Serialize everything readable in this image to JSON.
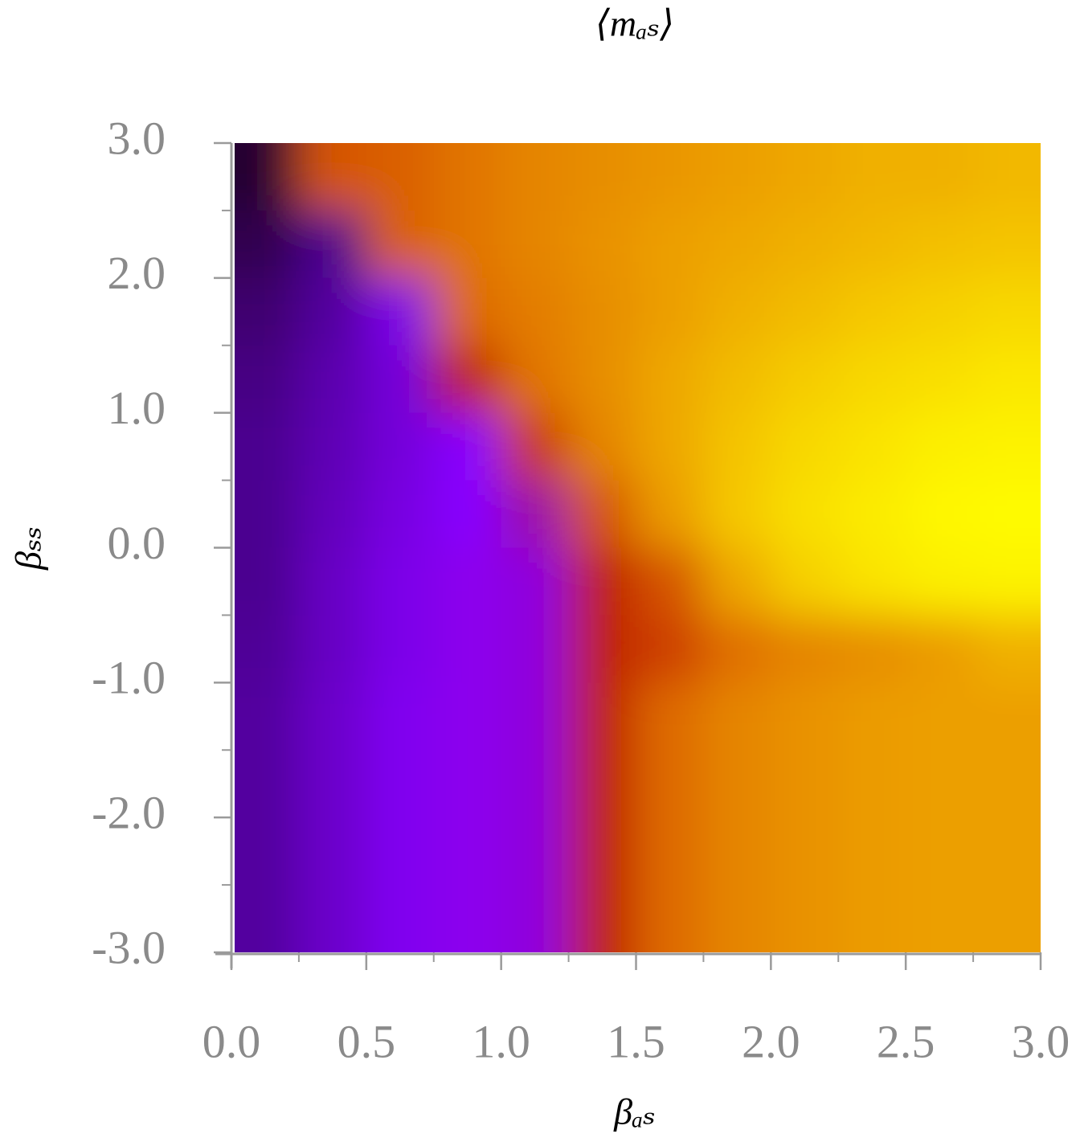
{
  "chart_data": {
    "type": "heatmap",
    "title": "⟨mₐₛ⟩",
    "x_label": "βₐₛ",
    "y_label": "βₛₛ",
    "x": [
      0.125,
      0.375,
      0.625,
      0.875,
      1.125,
      1.375,
      1.625,
      1.875,
      2.125,
      2.375,
      2.625,
      2.875
    ],
    "y": [
      2.75,
      2.25,
      1.75,
      1.25,
      0.75,
      0.25,
      -0.25,
      -0.75,
      -1.25,
      -1.75,
      -2.25,
      -2.75
    ],
    "z": [
      [
        0.05,
        0.6,
        0.62,
        0.66,
        0.7,
        0.72,
        0.74,
        0.76,
        0.78,
        0.8,
        0.8,
        0.82
      ],
      [
        0.1,
        0.2,
        0.62,
        0.66,
        0.7,
        0.73,
        0.76,
        0.78,
        0.8,
        0.82,
        0.84,
        0.85
      ],
      [
        0.15,
        0.22,
        0.32,
        0.64,
        0.68,
        0.72,
        0.76,
        0.8,
        0.83,
        0.86,
        0.88,
        0.9
      ],
      [
        0.18,
        0.24,
        0.3,
        0.5,
        0.66,
        0.72,
        0.78,
        0.83,
        0.87,
        0.9,
        0.92,
        0.94
      ],
      [
        0.2,
        0.25,
        0.3,
        0.35,
        0.55,
        0.7,
        0.78,
        0.85,
        0.9,
        0.93,
        0.96,
        0.97
      ],
      [
        0.2,
        0.26,
        0.31,
        0.35,
        0.4,
        0.6,
        0.75,
        0.86,
        0.92,
        0.95,
        0.98,
        0.99
      ],
      [
        0.2,
        0.27,
        0.32,
        0.36,
        0.37,
        0.5,
        0.6,
        0.78,
        0.88,
        0.93,
        0.96,
        0.97
      ],
      [
        0.21,
        0.27,
        0.32,
        0.36,
        0.37,
        0.5,
        0.56,
        0.65,
        0.7,
        0.72,
        0.75,
        0.8
      ],
      [
        0.22,
        0.28,
        0.33,
        0.36,
        0.37,
        0.5,
        0.64,
        0.7,
        0.73,
        0.75,
        0.76,
        0.76
      ],
      [
        0.22,
        0.28,
        0.33,
        0.36,
        0.37,
        0.5,
        0.64,
        0.7,
        0.73,
        0.75,
        0.76,
        0.76
      ],
      [
        0.22,
        0.28,
        0.33,
        0.36,
        0.37,
        0.5,
        0.64,
        0.7,
        0.73,
        0.75,
        0.76,
        0.76
      ],
      [
        0.22,
        0.28,
        0.33,
        0.36,
        0.37,
        0.5,
        0.64,
        0.7,
        0.73,
        0.75,
        0.76,
        0.76
      ]
    ],
    "colorscale": [
      [
        0,
        "#1a0010"
      ],
      [
        0.2,
        "#4b0090"
      ],
      [
        0.35,
        "#8800ff"
      ],
      [
        0.5,
        "#c02000"
      ],
      [
        0.65,
        "#e07000"
      ],
      [
        0.8,
        "#f0b000"
      ],
      [
        1,
        "#ffff00"
      ]
    ],
    "xlim": [
      0,
      3
    ],
    "ylim": [
      -3,
      3
    ],
    "xticks": [
      {
        "value": 0,
        "label": "0.0"
      },
      {
        "value": 0.5,
        "label": "0.5"
      },
      {
        "value": 1,
        "label": "1.0"
      },
      {
        "value": 1.5,
        "label": "1.5"
      },
      {
        "value": 2,
        "label": "2.0"
      },
      {
        "value": 2.5,
        "label": "2.5"
      },
      {
        "value": 3,
        "label": "3.0"
      }
    ],
    "xminorticks": [
      0.25,
      0.75,
      1.25,
      1.75,
      2.25,
      2.75
    ],
    "yticks": [
      {
        "value": -3,
        "label": "-3.0"
      },
      {
        "value": -2,
        "label": "-2.0"
      },
      {
        "value": -1,
        "label": "-1.0"
      },
      {
        "value": 0,
        "label": "0.0"
      },
      {
        "value": 1,
        "label": "1.0"
      },
      {
        "value": 2,
        "label": "2.0"
      },
      {
        "value": 3,
        "label": "3.0"
      }
    ],
    "yminorticks": [
      -2.5,
      -1.5,
      -0.5,
      0.5,
      1.5,
      2.5
    ]
  }
}
